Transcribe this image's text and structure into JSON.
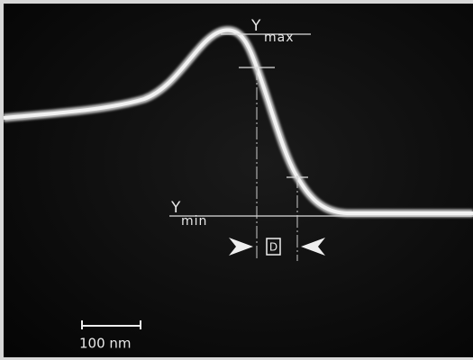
{
  "labels": {
    "ymax": {
      "symbol": "Y",
      "subscript": "max"
    },
    "ymin": {
      "symbol": "Y",
      "subscript": "min"
    },
    "width": "D",
    "scale_bar": "100 nm"
  }
}
